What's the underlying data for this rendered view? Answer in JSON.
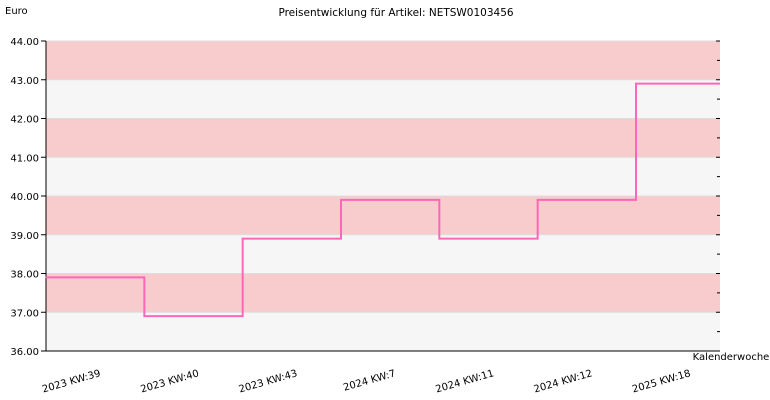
{
  "chart_data": {
    "type": "line",
    "title": "Preisentwicklung für Artikel: NETSW0103456",
    "ylabel": "Euro",
    "xlabel": "Kalenderwoche",
    "ylim": [
      36,
      44
    ],
    "yticks": [
      "36.00",
      "37.00",
      "38.00",
      "39.00",
      "40.00",
      "41.00",
      "42.00",
      "43.00",
      "44.00"
    ],
    "categories": [
      "2023 KW:39",
      "2023 KW:40",
      "2023 KW:43",
      "2024 KW:7",
      "2024 KW:11",
      "2024 KW:12",
      "2025 KW:18"
    ],
    "series": [
      {
        "values": [
          37.9,
          36.9,
          38.9,
          39.9,
          38.9,
          39.9,
          42.9
        ]
      }
    ],
    "step": true,
    "grid": true,
    "colors": {
      "line": "#ff66bb",
      "band_a": "#f8cccc",
      "band_b": "#f6f6f6",
      "gridline": "#dddddd",
      "axis": "#000000"
    }
  }
}
